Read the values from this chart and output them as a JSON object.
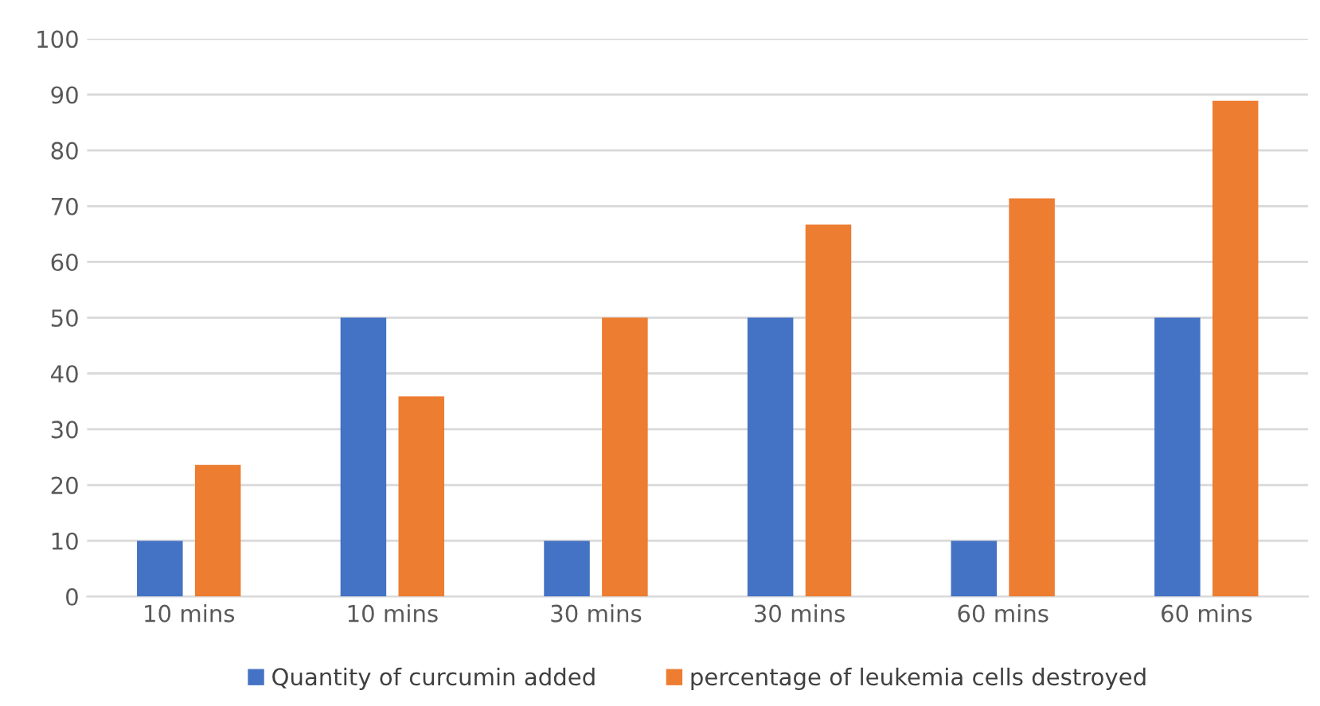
{
  "chart_data": {
    "type": "bar",
    "categories": [
      "10 mins",
      "10 mins",
      "30 mins",
      "30 mins",
      "60 mins",
      "60 mins"
    ],
    "series": [
      {
        "name": "Quantity of curcumin added",
        "color": "#4472c4",
        "values": [
          10,
          50,
          10,
          50,
          10,
          50
        ]
      },
      {
        "name": "percentage of leukemia cells destroyed",
        "color": "#ed7d31",
        "values": [
          23.6,
          35.9,
          50,
          66.7,
          71.4,
          88.9
        ]
      }
    ],
    "ylim": [
      0,
      100
    ],
    "yticks": [
      0,
      10,
      20,
      30,
      40,
      50,
      60,
      70,
      80,
      90,
      100
    ],
    "grid": "y",
    "legend": "bottom"
  }
}
